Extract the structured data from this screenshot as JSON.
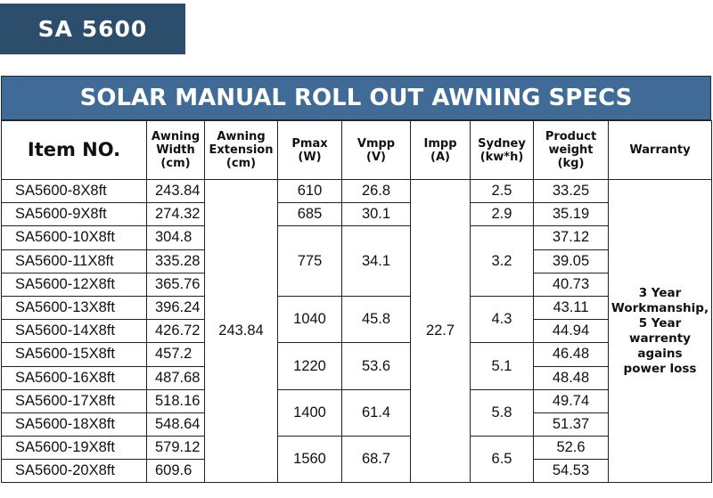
{
  "badge": {
    "label": "SA 5600"
  },
  "banner": {
    "title": "SOLAR MANUAL ROLL OUT AWNING SPECS"
  },
  "headers": {
    "item": "Item NO.",
    "width": [
      "Awning",
      "Width",
      "(cm)"
    ],
    "extension": [
      "Awning",
      "Extension",
      "(cm)"
    ],
    "pmax": [
      "Pmax",
      "(W)"
    ],
    "vmpp": [
      "Vmpp",
      "(V)"
    ],
    "impp": [
      "Impp",
      "(A)"
    ],
    "sydney": [
      "Sydney",
      "(kw*h)"
    ],
    "weight": [
      "Product",
      "weight",
      "(kg)"
    ],
    "warranty": "Warranty"
  },
  "rows": [
    {
      "item": "SA5600-8X8ft",
      "width": "243.84",
      "weight": "33.25"
    },
    {
      "item": "SA5600-9X8ft",
      "width": "274.32",
      "weight": "35.19"
    },
    {
      "item": "SA5600-10X8ft",
      "width": "304.8",
      "weight": "37.12"
    },
    {
      "item": "SA5600-11X8ft",
      "width": "335.28",
      "weight": "39.05"
    },
    {
      "item": "SA5600-12X8ft",
      "width": "365.76",
      "weight": "40.73"
    },
    {
      "item": "SA5600-13X8ft",
      "width": "396.24",
      "weight": "43.11"
    },
    {
      "item": "SA5600-14X8ft",
      "width": "426.72",
      "weight": "44.94"
    },
    {
      "item": "SA5600-15X8ft",
      "width": "457.2",
      "weight": "46.48"
    },
    {
      "item": "SA5600-16X8ft",
      "width": "487.68",
      "weight": "48.48"
    },
    {
      "item": "SA5600-17X8ft",
      "width": "518.16",
      "weight": "49.74"
    },
    {
      "item": "SA5600-18X8ft",
      "width": "548.64",
      "weight": "51.37"
    },
    {
      "item": "SA5600-19X8ft",
      "width": "579.12",
      "weight": "52.6"
    },
    {
      "item": "SA5600-20X8ft",
      "width": "609.6",
      "weight": "54.53"
    }
  ],
  "extension": "243.84",
  "impp": "22.7",
  "groups": [
    {
      "pmax": "610",
      "vmpp": "26.8",
      "sydney": "2.5"
    },
    {
      "pmax": "685",
      "vmpp": "30.1",
      "sydney": "2.9"
    },
    {
      "pmax": "775",
      "vmpp": "34.1",
      "sydney": "3.2"
    },
    {
      "pmax": "1040",
      "vmpp": "45.8",
      "sydney": "4.3"
    },
    {
      "pmax": "1220",
      "vmpp": "53.6",
      "sydney": "5.1"
    },
    {
      "pmax": "1400",
      "vmpp": "61.4",
      "sydney": "5.8"
    },
    {
      "pmax": "1560",
      "vmpp": "68.7",
      "sydney": "6.5"
    }
  ],
  "warranty": [
    "3 Year",
    "Workmanship,",
    "5 Year",
    "warrenty",
    "agains",
    "power loss"
  ]
}
